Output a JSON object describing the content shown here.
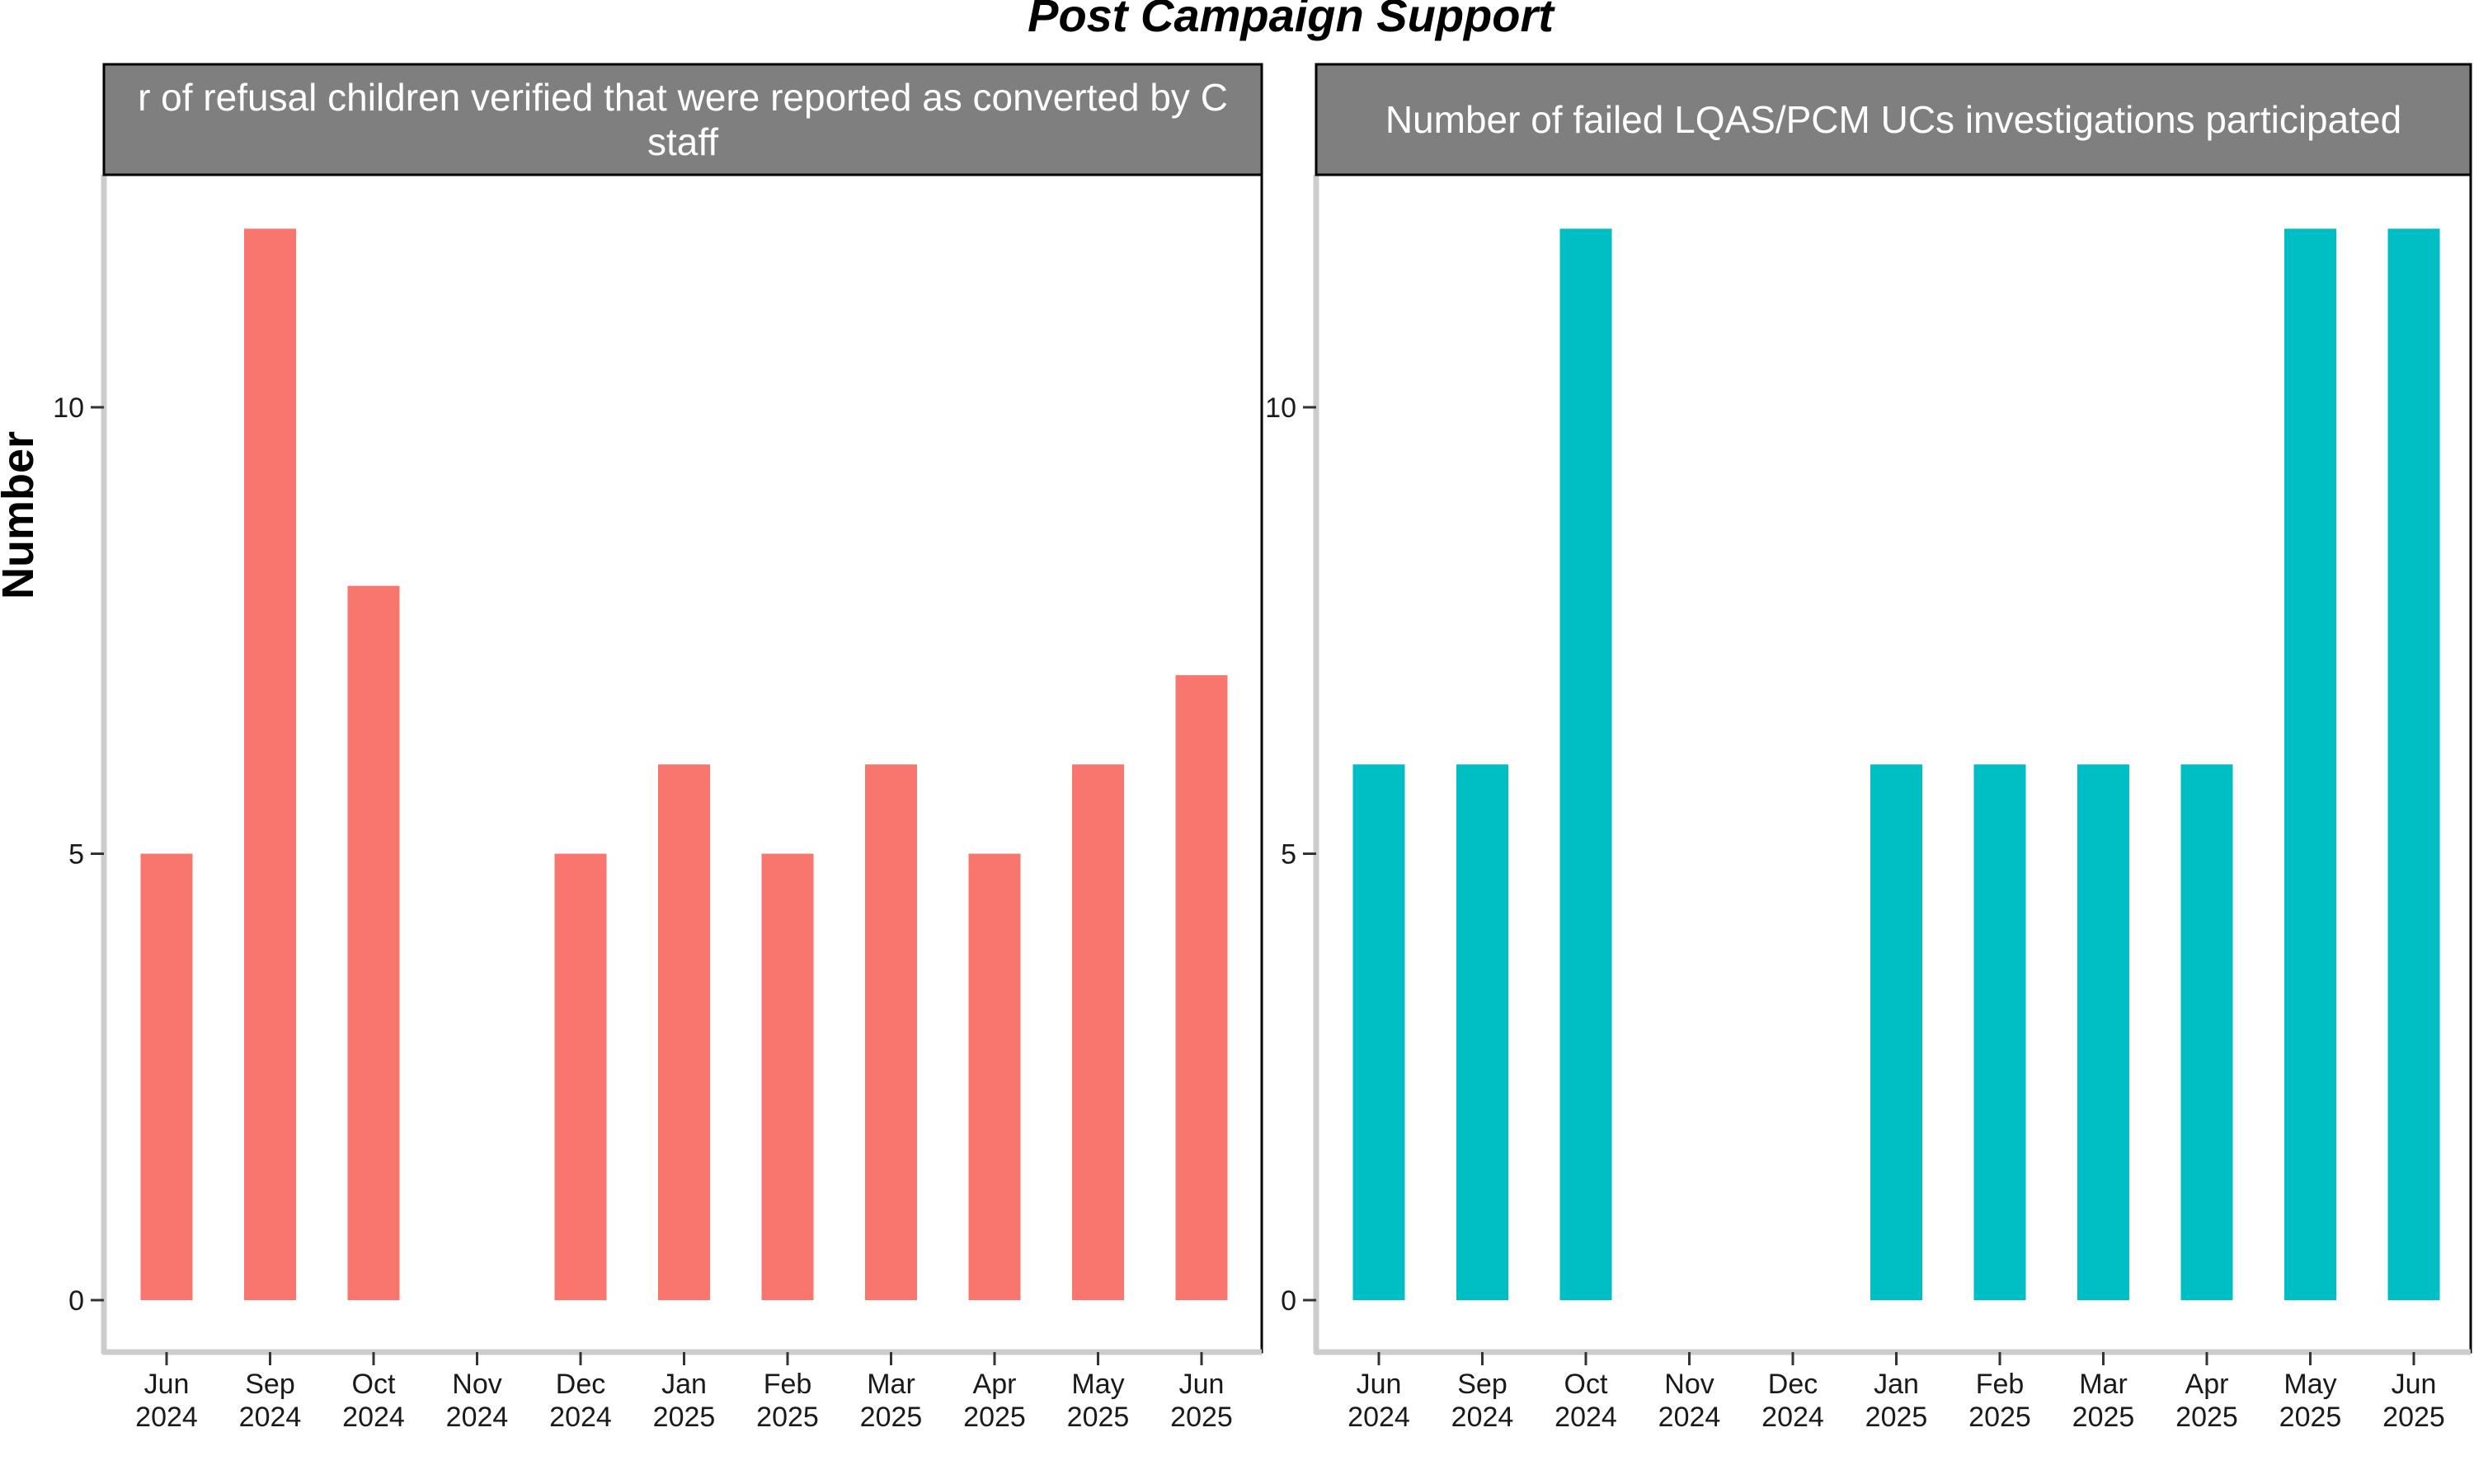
{
  "chart_data": {
    "type": "bar",
    "title": "Post Campaign Support",
    "ylabel": "Number",
    "xlabel": "",
    "ylim": [
      0,
      12
    ],
    "yticks": [
      0,
      5,
      10
    ],
    "grid": false,
    "categories": [
      "Jun\n2024",
      "Sep\n2024",
      "Oct\n2024",
      "Nov\n2024",
      "Dec\n2024",
      "Jan\n2025",
      "Feb\n2025",
      "Mar\n2025",
      "Apr\n2025",
      "May\n2025",
      "Jun\n2025"
    ],
    "panels": [
      {
        "strip_lines": [
          "r of refusal children verified that were reported as converted by C",
          "staff"
        ],
        "color": "#F8766D",
        "values": [
          5,
          12,
          8,
          null,
          5,
          6,
          5,
          6,
          5,
          6,
          7
        ]
      },
      {
        "strip_lines": [
          "Number of failed LQAS/PCM UCs investigations participated"
        ],
        "color": "#00BFC4",
        "values": [
          6,
          6,
          12,
          null,
          null,
          6,
          6,
          6,
          6,
          12,
          12
        ]
      }
    ]
  }
}
